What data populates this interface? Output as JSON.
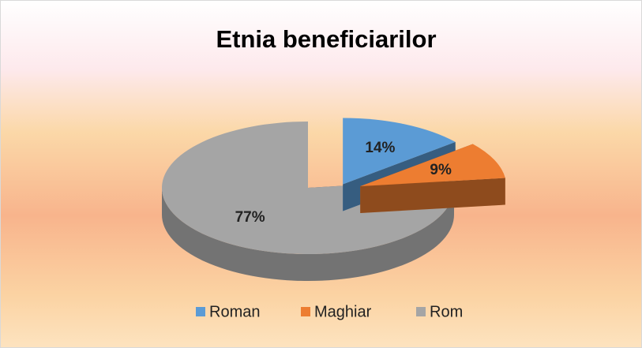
{
  "chart_data": {
    "type": "pie3d",
    "title": "Etnia beneficiarilor",
    "categories": [
      "Roman",
      "Maghiar",
      "Rom"
    ],
    "values": [
      14,
      9,
      77
    ],
    "value_labels": [
      "14%",
      "9%",
      "77%"
    ],
    "colors": [
      "#5b9bd5",
      "#ed7d31",
      "#a5a5a5"
    ],
    "exploded": [
      true,
      true,
      false
    ],
    "legend": "bottom"
  }
}
